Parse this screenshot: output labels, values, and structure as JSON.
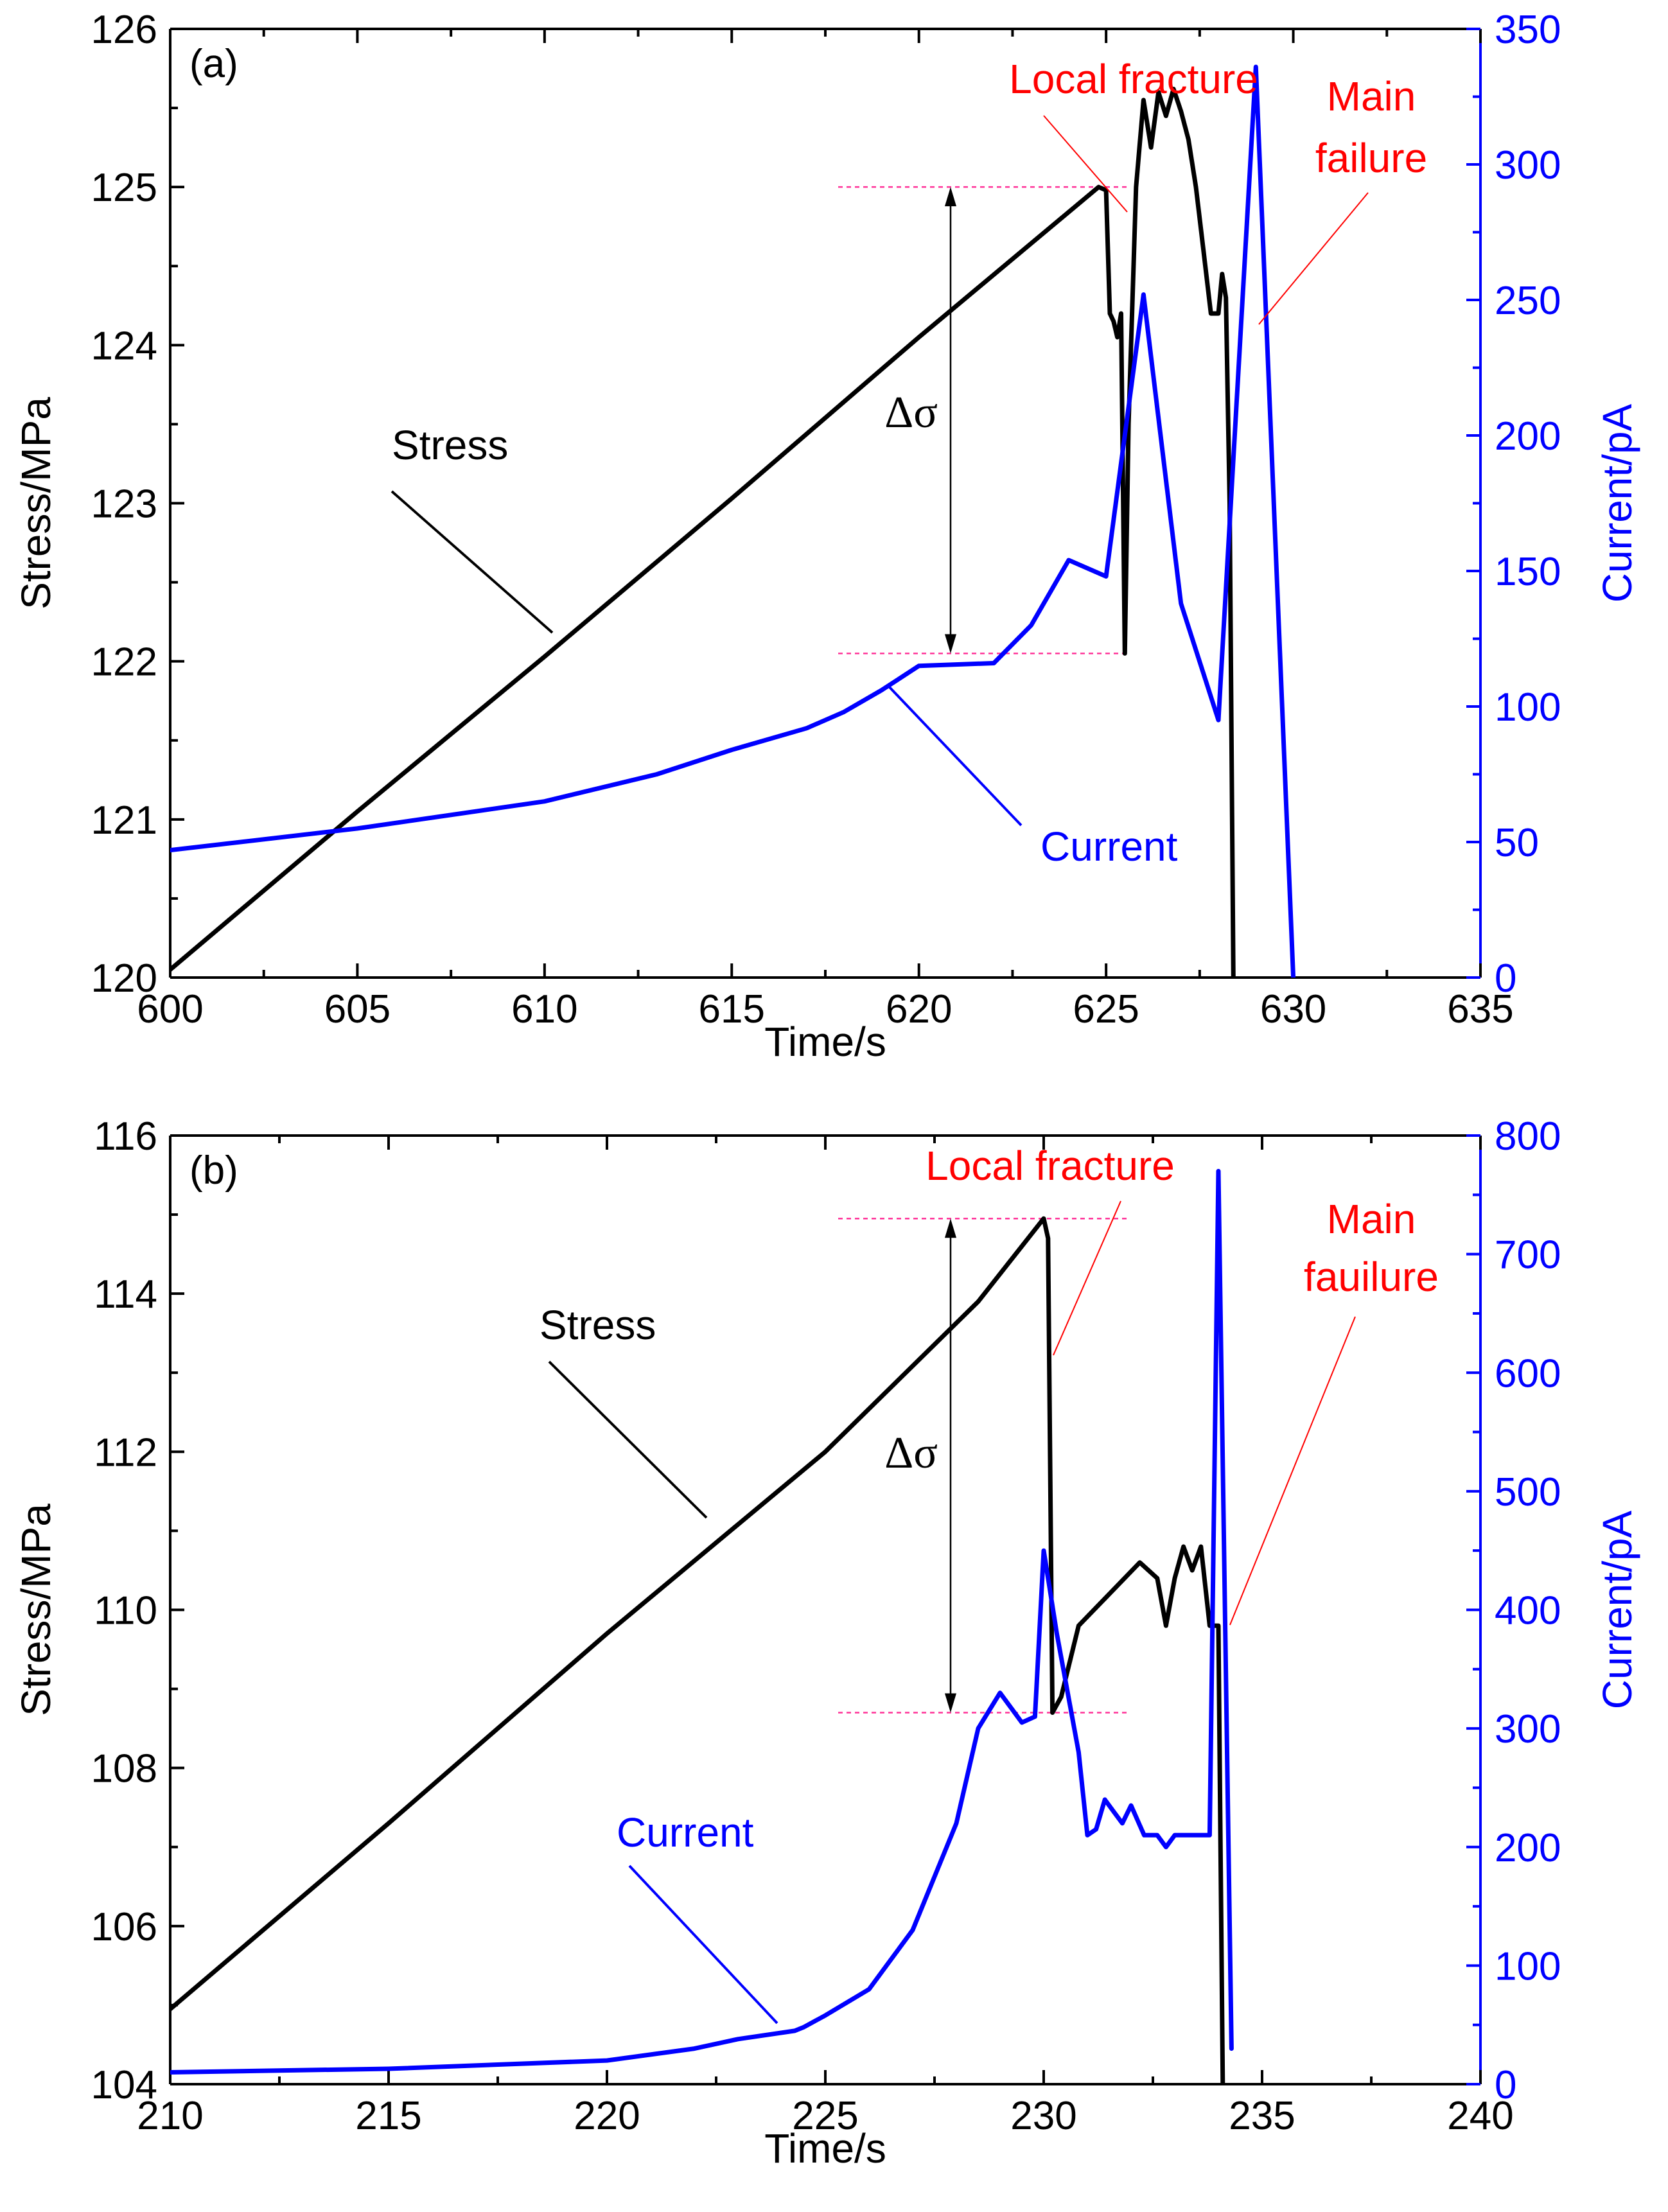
{
  "colors": {
    "stress": "#000000",
    "current": "#0000ff",
    "right_axis": "#0000ff",
    "annotation": "#ff0000",
    "guide": "#ff3399"
  },
  "chart_data": [
    {
      "type": "line",
      "panel_label": "(a)",
      "xlabel": "Time/s",
      "ylabel_left": "Stress/MPa",
      "ylabel_right": "Current/pA",
      "xlim": [
        600,
        635
      ],
      "ylim_left": [
        120,
        126
      ],
      "ylim_right": [
        0,
        350
      ],
      "xticks": [
        600,
        605,
        610,
        615,
        620,
        625,
        630,
        635
      ],
      "yticks_left": [
        120,
        121,
        122,
        123,
        124,
        125,
        126
      ],
      "yticks_right": [
        0,
        50,
        100,
        150,
        200,
        250,
        300,
        350
      ],
      "series": [
        {
          "name": "Stress",
          "axis": "left",
          "x": [
            600,
            605,
            610,
            615,
            620,
            624.8,
            625.0,
            625.1,
            625.2,
            625.3,
            625.4,
            625.5,
            625.6,
            625.8,
            626.0,
            626.2,
            626.4,
            626.6,
            626.8,
            627.0,
            627.2,
            627.4,
            627.6,
            627.8,
            628.0,
            628.1,
            628.2,
            628.3,
            628.4
          ],
          "y": [
            120.05,
            121.05,
            122.03,
            123.03,
            124.05,
            125.0,
            124.98,
            124.2,
            124.15,
            124.05,
            124.2,
            122.05,
            123.5,
            125.0,
            125.55,
            125.25,
            125.6,
            125.45,
            125.62,
            125.48,
            125.3,
            125.0,
            124.6,
            124.2,
            124.2,
            124.45,
            124.3,
            123.0,
            120.0
          ]
        },
        {
          "name": "Current",
          "axis": "right",
          "x": [
            600,
            605,
            610,
            613,
            615,
            617,
            618,
            619,
            620,
            622,
            623,
            624,
            625,
            626,
            627,
            628,
            629,
            630
          ],
          "y": [
            47,
            55,
            65,
            75,
            84,
            92,
            98,
            106,
            115,
            116,
            130,
            154,
            148,
            252,
            138,
            95,
            336,
            0
          ]
        }
      ],
      "annotations": {
        "stress_label": "Stress",
        "current_label": "Current",
        "local_fracture": "Local fracture",
        "main_failure_line1": "Main",
        "main_failure_line2": "failure",
        "delta_sigma": "Δσ"
      }
    },
    {
      "type": "line",
      "panel_label": "(b)",
      "xlabel": "Time/s",
      "ylabel_left": "Stress/MPa",
      "ylabel_right": "Current/pA",
      "xlim": [
        210,
        240
      ],
      "ylim_left": [
        104,
        116
      ],
      "ylim_right": [
        0,
        800
      ],
      "xticks": [
        210,
        215,
        220,
        225,
        230,
        235,
        240
      ],
      "yticks_left": [
        104,
        106,
        108,
        110,
        112,
        114,
        116
      ],
      "yticks_right": [
        0,
        100,
        200,
        300,
        400,
        500,
        600,
        700,
        800
      ],
      "series": [
        {
          "name": "Stress",
          "axis": "left",
          "x": [
            210,
            215,
            220,
            225,
            228.5,
            229.5,
            230.0,
            230.1,
            230.2,
            230.4,
            230.8,
            231.5,
            232.2,
            232.6,
            232.8,
            233.0,
            233.2,
            233.4,
            233.6,
            233.8,
            234.0,
            234.1
          ],
          "y": [
            104.95,
            107.3,
            109.7,
            112.0,
            113.9,
            114.6,
            114.95,
            114.7,
            108.7,
            108.9,
            109.8,
            110.2,
            110.6,
            110.4,
            109.8,
            110.4,
            110.8,
            110.5,
            110.8,
            109.8,
            109.8,
            104.0
          ]
        },
        {
          "name": "Current",
          "axis": "right",
          "x": [
            210,
            215,
            220,
            222,
            223,
            224.3,
            224.5,
            225,
            226,
            227,
            228,
            228.5,
            229,
            229.5,
            229.8,
            230,
            230.3,
            230.5,
            230.8,
            231,
            231.2,
            231.4,
            231.6,
            231.8,
            232,
            232.3,
            232.6,
            232.8,
            233,
            233.2,
            233.4,
            233.6,
            233.8,
            234.0,
            234.3
          ],
          "y": [
            10,
            13,
            20,
            30,
            38,
            45,
            48,
            58,
            80,
            130,
            220,
            300,
            330,
            305,
            310,
            450,
            380,
            340,
            280,
            210,
            215,
            240,
            230,
            220,
            235,
            210,
            210,
            200,
            210,
            210,
            210,
            210,
            210,
            770,
            30
          ]
        }
      ],
      "annotations": {
        "stress_label": "Stress",
        "current_label": "Current",
        "local_fracture": "Local fracture",
        "main_failure_line1": "Main",
        "main_failure_line2": "fauilure",
        "delta_sigma": "Δσ"
      }
    }
  ]
}
